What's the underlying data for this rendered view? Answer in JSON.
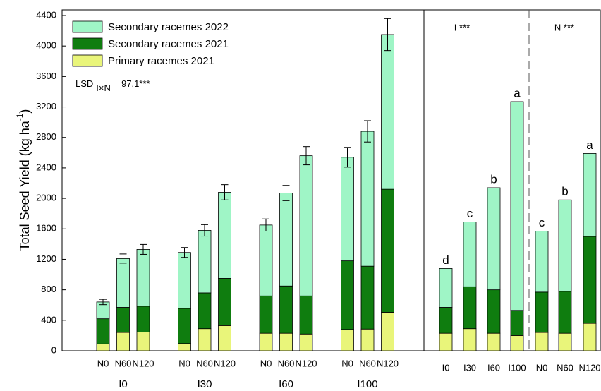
{
  "chart_data": [
    {
      "type": "bar",
      "stacked": true,
      "y_label": "Total Seed Yield (kg ha",
      "y_label_sup": "-1",
      "y_label_end": ")",
      "lsd": {
        "text": "LSD",
        "sub": "I×N",
        "rest": "= 97.1***"
      },
      "categories": [
        "N0",
        "N60",
        "N120",
        "N0",
        "N60",
        "N120",
        "N0",
        "N60",
        "N120",
        "N0",
        "N60",
        "N120"
      ],
      "groups": [
        "I0",
        "I30",
        "I60",
        "I100"
      ],
      "series": [
        {
          "name": "Primary racemes 2021",
          "color": "#e9f57a",
          "values": [
            90,
            240,
            245,
            95,
            290,
            330,
            230,
            230,
            220,
            280,
            285,
            505
          ]
        },
        {
          "name": "Secondary racemes 2021",
          "color": "#0f7d0f",
          "values": [
            330,
            330,
            340,
            460,
            470,
            620,
            490,
            620,
            500,
            900,
            825,
            1615
          ]
        },
        {
          "name": "Secondary racemes 2022",
          "color": "#9ff5c6",
          "values": [
            220,
            640,
            745,
            735,
            820,
            1130,
            930,
            1220,
            1840,
            1360,
            1770,
            2030
          ]
        }
      ],
      "errors": [
        35,
        60,
        65,
        65,
        75,
        100,
        80,
        100,
        120,
        130,
        140,
        210
      ],
      "ylim": [
        0,
        4400
      ],
      "yticks": [
        0,
        400,
        800,
        1200,
        1600,
        2000,
        2400,
        2800,
        3200,
        3600,
        4000,
        4400
      ],
      "legend": "upper left"
    },
    {
      "type": "bar",
      "stacked": true,
      "annotations": [
        "I ***",
        "N ***"
      ],
      "categories": [
        "I0",
        "I30",
        "I60",
        "I100",
        "N0",
        "N60",
        "N120"
      ],
      "series": [
        {
          "color": "#e9f57a",
          "values": [
            230,
            290,
            230,
            200,
            240,
            230,
            360
          ]
        },
        {
          "color": "#0f7d0f",
          "values": [
            340,
            550,
            570,
            330,
            530,
            550,
            1140
          ]
        },
        {
          "color": "#9ff5c6",
          "values": [
            510,
            850,
            1340,
            2740,
            800,
            1200,
            1090
          ]
        }
      ],
      "letters": [
        "d",
        "c",
        "b",
        "a",
        "c",
        "b",
        "a"
      ],
      "ylim": [
        0,
        4400
      ]
    }
  ]
}
